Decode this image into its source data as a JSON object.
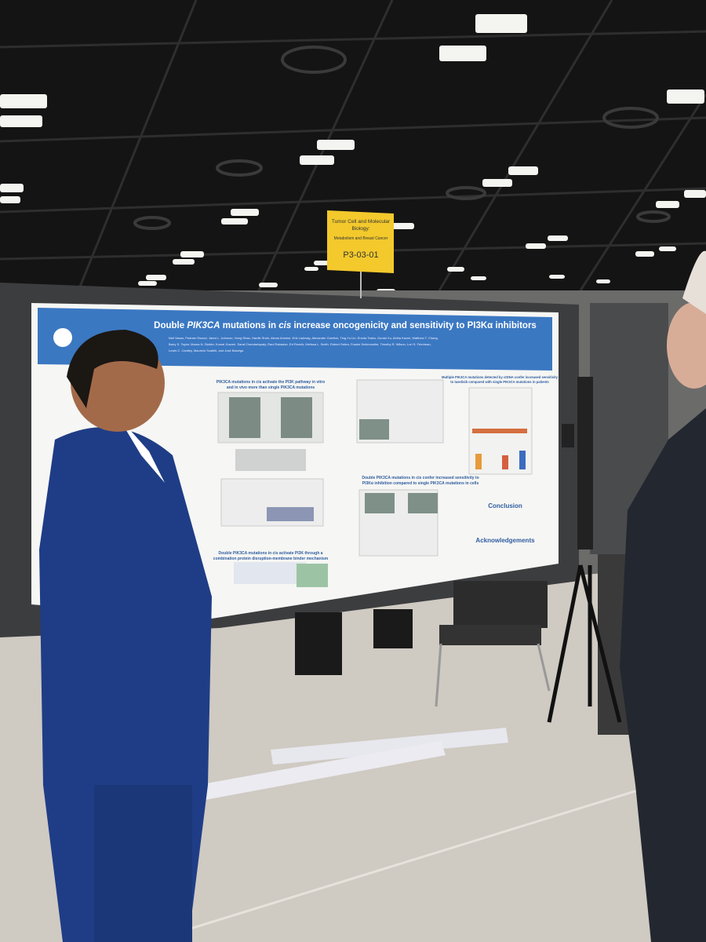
{
  "sign": {
    "lines": [
      "Tumor Cell and Molecular",
      "Biology:",
      "Metabolism and Breast Cancer"
    ],
    "code": "P3-03-01"
  },
  "poster": {
    "title_parts": [
      "Double ",
      "PIK3CA",
      " mutations in ",
      "cis",
      " increase oncogenicity and sensitivity to PI3Kα inhibitors"
    ],
    "authors": [
      "Neil Vasan, Pedram Razavi, Jared L. Johnson, Hong Shao, Hardik Shah, Alesia Antoine, Erik Ladewig, Alexander Gorelick, Ting-Yu Lin, Eneda Toska, Guotai Xu, Abiha Kazmi, Matthew T. Chang,",
      "Barry S. Taylor, Maura N. Dickler, Komal Jhaveri, Sarat Chandarlapaty, Raul Rabadan, Ed Reznik, Melissa L. Smith, Robert Sebra, Frauke Schimmoller, Timothy R. Wilson, Lori S. Friedman,",
      "Lewis C. Cantley, Maurizio Scaltriti, and José Baselga"
    ],
    "sections": [
      {
        "lines": [
          "PIK3CA mutations in cis activate the PI3K pathway in vitro",
          "and in vivo more than single PIK3CA mutations"
        ]
      },
      {
        "lines": [
          "Double PIK3CA mutations in cis confer increased sensitivity to",
          "PI3Kα inhibition compared to single PIK3CA mutations in cells"
        ]
      },
      {
        "lines": [
          "Multiple PIK3CA mutations detected by ctDNA confer increased sensitivity",
          "to taselisib compared with single PIK3CA mutations in patients"
        ]
      },
      {
        "lines": [
          "Double PIK3CA mutations in cis activate PI3K through a",
          "combination protein disruption-membrane binder mechanism"
        ]
      },
      {
        "lines": [
          "Conclusion"
        ]
      },
      {
        "lines": [
          "Acknowledgements"
        ]
      }
    ]
  }
}
